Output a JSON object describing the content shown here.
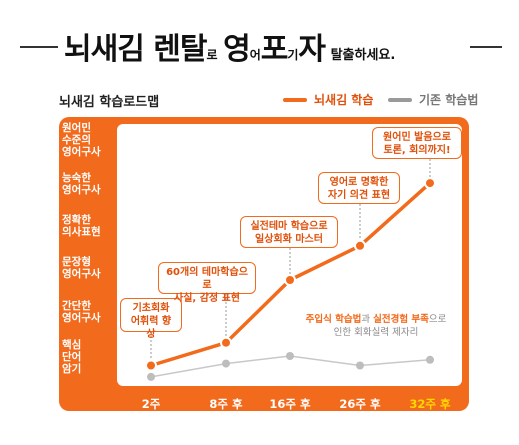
{
  "header": {
    "big1": "뇌새김 렌탈",
    "small1": "로",
    "big2": "영",
    "small2": "어",
    "big3": "포",
    "small3": "기",
    "big4": "자",
    "tail": "탈출하세요."
  },
  "colors": {
    "accent": "#f26a1b",
    "secondary": "#9a9a9a",
    "highlight": "#ffd800"
  },
  "chart_data": {
    "type": "line",
    "title": "뇌새김 학습로드맵",
    "legend_position": "top-right",
    "categories": [
      "2주",
      "8주 후",
      "16주 후",
      "26주 후",
      "32주 후"
    ],
    "y_levels": [
      "핵심 단어 암기",
      "간단한 영어구사",
      "문장형 영어구사",
      "정확한 의사표현",
      "능숙한 영어구사",
      "원어민 수준의 영어구사"
    ],
    "ylim": [
      0,
      5.5
    ],
    "series": [
      {
        "name": "뇌새김 학습",
        "color": "#f26a1b",
        "values": [
          0.25,
          0.85,
          2.5,
          3.4,
          5.05
        ]
      },
      {
        "name": "기존 학습법",
        "color": "#9a9a9a",
        "values": [
          -0.05,
          0.3,
          0.5,
          0.25,
          0.4
        ]
      }
    ],
    "callouts": [
      "기초회화\n어휘력 향상",
      "60개의 테마학습으로\n사실, 감정 표현",
      "실전테마 학습으로\n일상회화 마스터",
      "영어로 명확한\n자기 의견 표현",
      "원어민 발음으로\n토론, 회의까지!"
    ],
    "note": {
      "part1": "주입식 학습법",
      "part2": "과 ",
      "part3": "실전경험 부족",
      "part4": "으로",
      "line2": "인한 회화실력 제자리"
    }
  }
}
